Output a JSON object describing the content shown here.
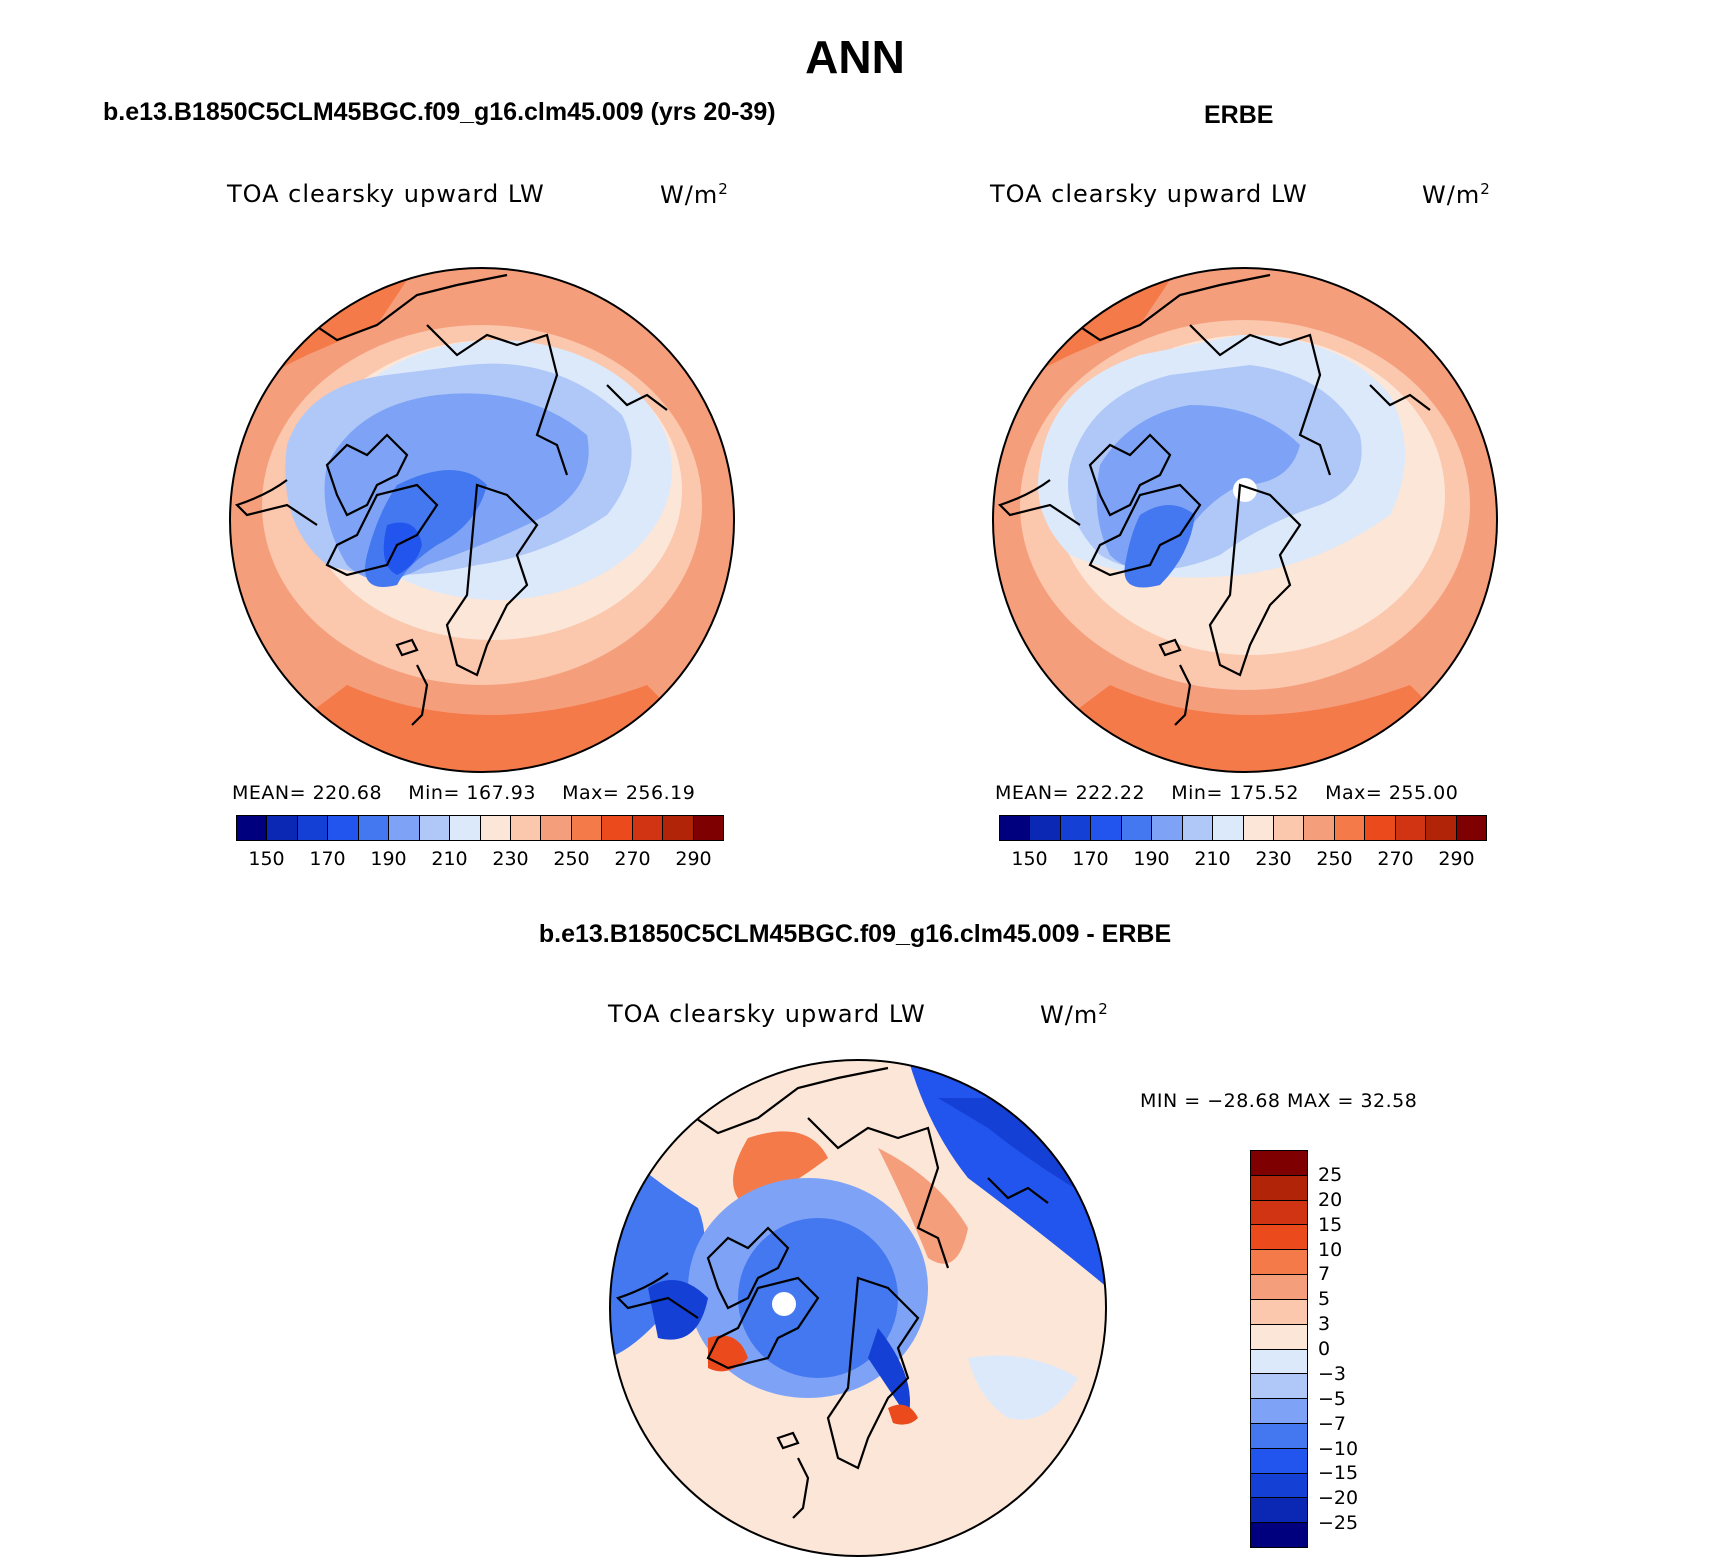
{
  "figure": {
    "season": "ANN"
  },
  "panels": [
    {
      "id": "model",
      "title": "b.e13.B1850C5CLM45BGC.f09_g16.clm45.009 (yrs 20-39)",
      "variable": "TOA clearsky upward LW",
      "units": "W/m",
      "units_exp": "2",
      "stats": {
        "mean_label": "MEAN=",
        "mean": "220.68",
        "min_label": "Min=",
        "min": "167.93",
        "max_label": "Max=",
        "max": "256.19"
      }
    },
    {
      "id": "obs",
      "title": "ERBE",
      "variable": "TOA clearsky upward LW",
      "units": "W/m",
      "units_exp": "2",
      "stats": {
        "mean_label": "MEAN=",
        "mean": "222.22",
        "min_label": "Min=",
        "min": "175.52",
        "max_label": "Max=",
        "max": "255.00"
      }
    },
    {
      "id": "diff",
      "title": "b.e13.B1850C5CLM45BGC.f09_g16.clm45.009 - ERBE",
      "variable": "TOA clearsky upward LW",
      "units": "W/m",
      "units_exp": "2",
      "stats_text": "MIN = −28.68 MAX =  32.58"
    }
  ],
  "colorbar_abs": {
    "colors": [
      "#00007f",
      "#0a28b4",
      "#1440d6",
      "#2255ee",
      "#4478f0",
      "#7ea3f6",
      "#b0c8f8",
      "#dce9fb",
      "#fce6d8",
      "#fbc7ad",
      "#f59e7c",
      "#f47a4a",
      "#ea4a1c",
      "#d13412",
      "#b12408",
      "#7f0000"
    ],
    "tick_labels": [
      "150",
      "170",
      "190",
      "210",
      "230",
      "250",
      "270",
      "290"
    ]
  },
  "colorbar_diff": {
    "colors": [
      "#7f0000",
      "#b12408",
      "#d13412",
      "#ea4a1c",
      "#f47a4a",
      "#f59e7c",
      "#fbc7ad",
      "#fce6d8",
      "#dce9fb",
      "#b0c8f8",
      "#7ea3f6",
      "#4478f0",
      "#2255ee",
      "#1440d6",
      "#0a28b4",
      "#00007f"
    ],
    "tick_labels": [
      "25",
      "20",
      "15",
      "10",
      "7",
      "5",
      "3",
      "0",
      "−3",
      "−5",
      "−7",
      "−10",
      "−15",
      "−20",
      "−25"
    ]
  },
  "chart_data": [
    {
      "type": "heatmap",
      "projection": "north-polar-stereographic",
      "title": "b.e13.B1850C5CLM45BGC.f09_g16.clm45.009 (yrs 20-39)",
      "variable": "TOA clearsky upward LW",
      "units": "W/m^2",
      "mean": 220.68,
      "min": 167.93,
      "max": 256.19,
      "contour_levels": [
        150,
        160,
        170,
        180,
        190,
        200,
        210,
        220,
        230,
        240,
        250,
        260,
        270,
        280,
        290
      ],
      "colorbar_range": [
        140,
        300
      ]
    },
    {
      "type": "heatmap",
      "projection": "north-polar-stereographic",
      "title": "ERBE",
      "variable": "TOA clearsky upward LW",
      "units": "W/m^2",
      "mean": 222.22,
      "min": 175.52,
      "max": 255.0,
      "contour_levels": [
        150,
        160,
        170,
        180,
        190,
        200,
        210,
        220,
        230,
        240,
        250,
        260,
        270,
        280,
        290
      ],
      "colorbar_range": [
        140,
        300
      ]
    },
    {
      "type": "heatmap",
      "projection": "north-polar-stereographic",
      "title": "b.e13.B1850C5CLM45BGC.f09_g16.clm45.009 - ERBE",
      "variable": "TOA clearsky upward LW",
      "units": "W/m^2",
      "min": -28.68,
      "max": 32.58,
      "contour_levels": [
        -25,
        -20,
        -15,
        -10,
        -7,
        -5,
        -3,
        0,
        3,
        5,
        7,
        10,
        15,
        20,
        25
      ]
    }
  ]
}
